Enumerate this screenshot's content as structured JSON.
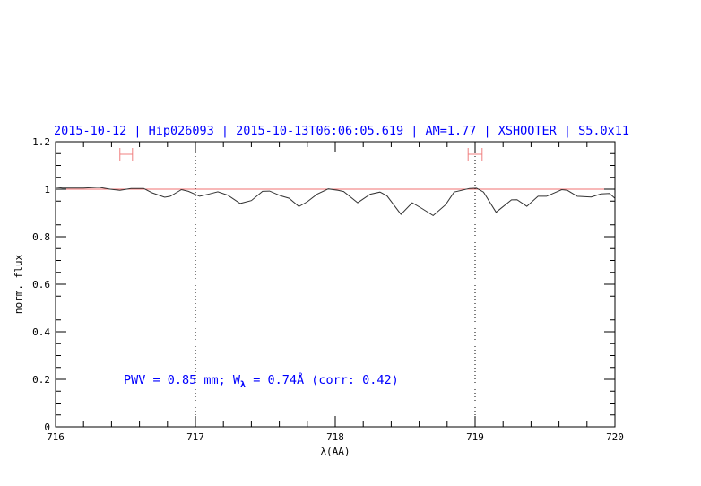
{
  "chart_data": {
    "type": "line",
    "title": "2015-10-12 | Hip026093 | 2015-10-13T06:06:05.619 | AM=1.77 | XSHOOTER | S5.0x11",
    "xlabel": "λ(AA)",
    "ylabel": "norm. flux",
    "xlim": [
      716,
      720
    ],
    "ylim": [
      0,
      1.2
    ],
    "xticks": [
      "716",
      "717",
      "718",
      "719",
      "720"
    ],
    "yticks": [
      "0",
      "0.2",
      "0.4",
      "0.6",
      "0.8",
      "1",
      "1.2"
    ],
    "reference_line": 1.0,
    "dotted_vlines": [
      717,
      719
    ],
    "ranges": [
      [
        716.46,
        716.55
      ],
      [
        718.95,
        719.05
      ]
    ],
    "annotation": {
      "prefix": "PWV = 0.85 mm; W",
      "sub": "λ",
      "suffix": " = 0.74Å (corr: 0.42)"
    },
    "colors": {
      "title": "#0000ff",
      "annotation": "#0000ff",
      "spectrum": "#333333",
      "reference": "#f07070",
      "ranges": "#f08080"
    },
    "series": [
      {
        "x": [
          716.0,
          716.05,
          716.2,
          716.31,
          716.39,
          716.46,
          716.54,
          716.63,
          716.69,
          716.78,
          716.82,
          716.9,
          716.95,
          717.03,
          717.1,
          717.16,
          717.23,
          717.32,
          717.4,
          717.48,
          717.53,
          717.61,
          717.67,
          717.74,
          717.8,
          717.87,
          717.95,
          718.02,
          718.06,
          718.16,
          718.25,
          718.32,
          718.37,
          718.47,
          718.55,
          718.62,
          718.7,
          718.79,
          718.85,
          718.96,
          719.01,
          719.06,
          719.15,
          719.26,
          719.3,
          719.37,
          719.45,
          719.51,
          719.62,
          719.66,
          719.73,
          719.83,
          719.9,
          719.96,
          720.0
        ],
        "y": [
          1.008,
          1.005,
          1.005,
          1.008,
          1.0,
          0.995,
          1.003,
          1.003,
          0.985,
          0.966,
          0.97,
          0.998,
          0.991,
          0.97,
          0.98,
          0.989,
          0.975,
          0.94,
          0.952,
          0.991,
          0.992,
          0.972,
          0.962,
          0.927,
          0.947,
          0.979,
          1.001,
          0.995,
          0.99,
          0.943,
          0.979,
          0.988,
          0.972,
          0.894,
          0.943,
          0.919,
          0.889,
          0.935,
          0.988,
          1.003,
          1.004,
          0.988,
          0.903,
          0.955,
          0.956,
          0.928,
          0.97,
          0.97,
          0.998,
          0.995,
          0.97,
          0.967,
          0.98,
          0.982,
          0.962
        ]
      }
    ]
  }
}
